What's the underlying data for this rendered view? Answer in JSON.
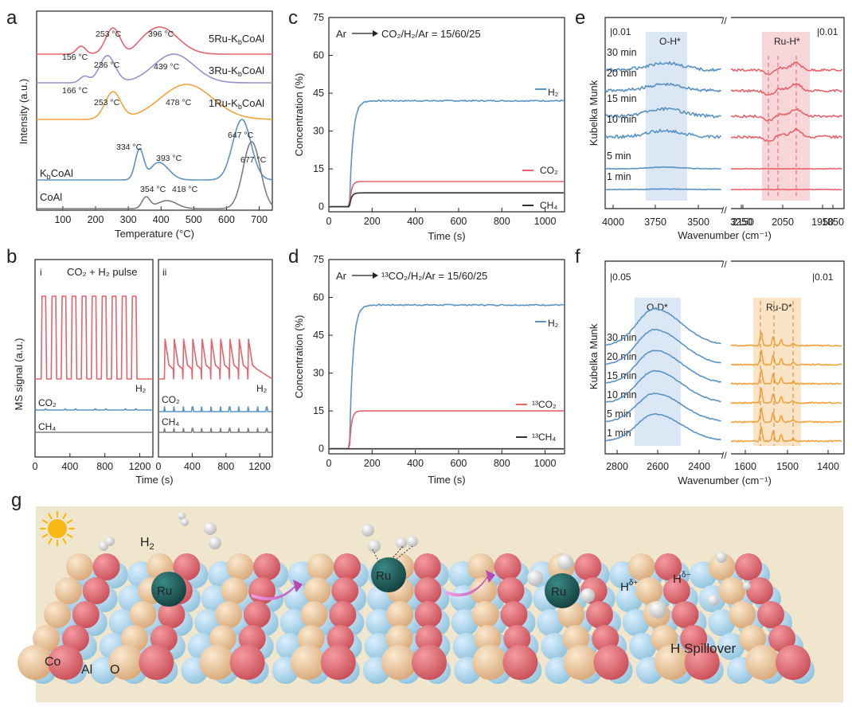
{
  "colors": {
    "red": "#e7636b",
    "blue": "#5b93c6",
    "purple": "#9b8fd0",
    "orange": "#f2a33c",
    "grey": "#7d7d7d",
    "dark": "#333333",
    "beige": "#efe6cd",
    "co_sphere": "#f2c99b",
    "o_sphere": "#e46a72",
    "al_sphere": "#a9d4ea",
    "ru_sphere": "#1e5a58"
  },
  "panels": {
    "a": "a",
    "b": "b",
    "c": "c",
    "d": "d",
    "e": "e",
    "f": "f",
    "g": "g"
  },
  "chart_data": [
    {
      "panel": "a",
      "type": "line",
      "xlabel": "Temperature (°C)",
      "ylabel": "Intensity (a.u.)",
      "xlim": [
        20,
        740
      ],
      "xticks": [
        "100",
        "200",
        "300",
        "400",
        "500",
        "600",
        "700"
      ],
      "series": [
        {
          "name": "5Ru-KbCoAl",
          "peaks": [
            156,
            253,
            396
          ]
        },
        {
          "name": "3Ru-KbCoAl",
          "peaks": [
            166,
            236,
            439
          ]
        },
        {
          "name": "1Ru-KbCoAl",
          "peaks": [
            253,
            478
          ]
        },
        {
          "name": "KbCoAl",
          "peaks": [
            334,
            393,
            647
          ]
        },
        {
          "name": "CoAl",
          "peaks": [
            354,
            418,
            677
          ]
        }
      ],
      "labels": {
        "s5": "5Ru-K",
        "s3": "3Ru-K",
        "s1": "1Ru-K",
        "k": "K",
        "coal": "CoAl",
        "sub": "b",
        "tail": "CoAl"
      },
      "annotations": [
        "253 °C",
        "396 °C",
        "156 °C",
        "236 °C",
        "439 °C",
        "166 °C",
        "253 °C",
        "478 °C",
        "334 °C",
        "393 °C",
        "647 °C",
        "354 °C",
        "418 °C",
        "677 °C"
      ]
    },
    {
      "panel": "b",
      "type": "line",
      "title": "CO₂ + H₂ pulse",
      "subpanels": [
        "i",
        "ii"
      ],
      "ylabel": "MS signal (a.u.)",
      "xlabel": "Time (s)",
      "xticks": [
        "0",
        "400",
        "800",
        "1200"
      ],
      "series": [
        {
          "name": "H₂",
          "pulses_i": 10,
          "pulses_ii": 10
        },
        {
          "name": "CO₂"
        },
        {
          "name": "CH₄"
        }
      ]
    },
    {
      "panel": "c",
      "type": "line",
      "title": "Ar → CO₂/H₂/Ar = 15/60/25",
      "title_left": "Ar",
      "title_right": "CO₂/H₂/Ar = 15/60/25",
      "xlabel": "Time (s)",
      "ylabel": "Concentration (%)",
      "xlim": [
        0,
        1090
      ],
      "ylim": [
        -2,
        75
      ],
      "xticks": [
        0,
        200,
        400,
        600,
        800,
        1000
      ],
      "yticks": [
        0,
        15,
        30,
        45,
        60,
        75
      ],
      "switch_time": 95,
      "series": [
        {
          "name": "H₂",
          "plateau": 42
        },
        {
          "name": "CO₂",
          "plateau": 10
        },
        {
          "name": "CH₄",
          "plateau": 5.5
        }
      ]
    },
    {
      "panel": "d",
      "type": "line",
      "title": "Ar → ¹³CO₂/H₂/Ar = 15/60/25",
      "title_left": "Ar",
      "title_right": "¹³CO₂/H₂/Ar = 15/60/25",
      "xlabel": "Time (s)",
      "ylabel": "Concentration (%)",
      "xlim": [
        0,
        1090
      ],
      "ylim": [
        -2,
        75
      ],
      "xticks": [
        0,
        200,
        400,
        600,
        800,
        1000
      ],
      "yticks": [
        0,
        15,
        30,
        45,
        60,
        75
      ],
      "switch_time": 95,
      "series": [
        {
          "name": "H₂",
          "plateau": 57
        },
        {
          "name": "¹³CO₂",
          "plateau": 15
        },
        {
          "name": "¹³CH₄",
          "plateau": 0
        }
      ]
    },
    {
      "panel": "e",
      "type": "line",
      "xlabel": "Wavenumber (cm⁻¹)",
      "ylabel": "Kubelka Munk",
      "xticks_left": [
        "4000",
        "3750",
        "3500",
        "3250"
      ],
      "xticks_right": [
        "2150",
        "2050",
        "1950",
        "1850"
      ],
      "scale_left": "|0.01",
      "scale_right": "|0.01",
      "bands": [
        "O-H*",
        "Ru-H*"
      ],
      "times": [
        "30 min",
        "20 min",
        "15 min",
        "10 min",
        "5 min",
        "1 min"
      ]
    },
    {
      "panel": "f",
      "type": "line",
      "xlabel": "Wavenumber (cm⁻¹)",
      "ylabel": "Kubelka Munk",
      "xticks_left": [
        "2800",
        "2600",
        "2400"
      ],
      "xticks_right": [
        "1600",
        "1500",
        "1400"
      ],
      "scale_left": "|0.05",
      "scale_right": "|0.01",
      "bands": [
        "O-D*",
        "Ru-D*"
      ],
      "times": [
        "30 min",
        "20 min",
        "15 min",
        "10 min",
        "5 min",
        "1 min"
      ]
    }
  ],
  "scheme": {
    "labels": {
      "h2": "H",
      "h2_sub": "2",
      "ru": "Ru",
      "h_plus": "H",
      "h_plus_sup": "δ+",
      "h_minus": "H",
      "h_minus_sup": "δ−",
      "spillover": "H Spillover",
      "co": "Co",
      "al": "Al",
      "o": "O"
    }
  }
}
